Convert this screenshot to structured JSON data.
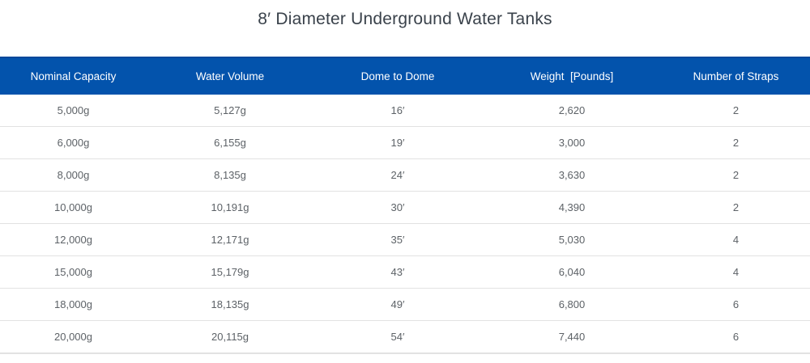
{
  "page": {
    "title": "8′ Diameter Underground Water Tanks"
  },
  "colors": {
    "header_bg": "#0353ac",
    "header_top_border": "#03479a",
    "header_text": "#ffffff",
    "body_text": "#5d6267",
    "row_border": "#e2e2e2",
    "title_text": "#3a424b"
  },
  "chart_data": {
    "type": "table",
    "title": "8′ Diameter Underground Water Tanks",
    "columns": [
      "Nominal Capacity",
      "Water Volume",
      "Dome to Dome",
      "Weight  [Pounds]",
      "Number of Straps"
    ],
    "rows": [
      [
        "5,000g",
        "5,127g",
        "16′",
        "2,620",
        "2"
      ],
      [
        "6,000g",
        "6,155g",
        "19′",
        "3,000",
        "2"
      ],
      [
        "8,000g",
        "8,135g",
        "24′",
        "3,630",
        "2"
      ],
      [
        "10,000g",
        "10,191g",
        "30′",
        "4,390",
        "2"
      ],
      [
        "12,000g",
        "12,171g",
        "35′",
        "5,030",
        "4"
      ],
      [
        "15,000g",
        "15,179g",
        "43′",
        "6,040",
        "4"
      ],
      [
        "18,000g",
        "18,135g",
        "49′",
        "6,800",
        "6"
      ],
      [
        "20,000g",
        "20,115g",
        "54′",
        "7,440",
        "6"
      ]
    ]
  }
}
